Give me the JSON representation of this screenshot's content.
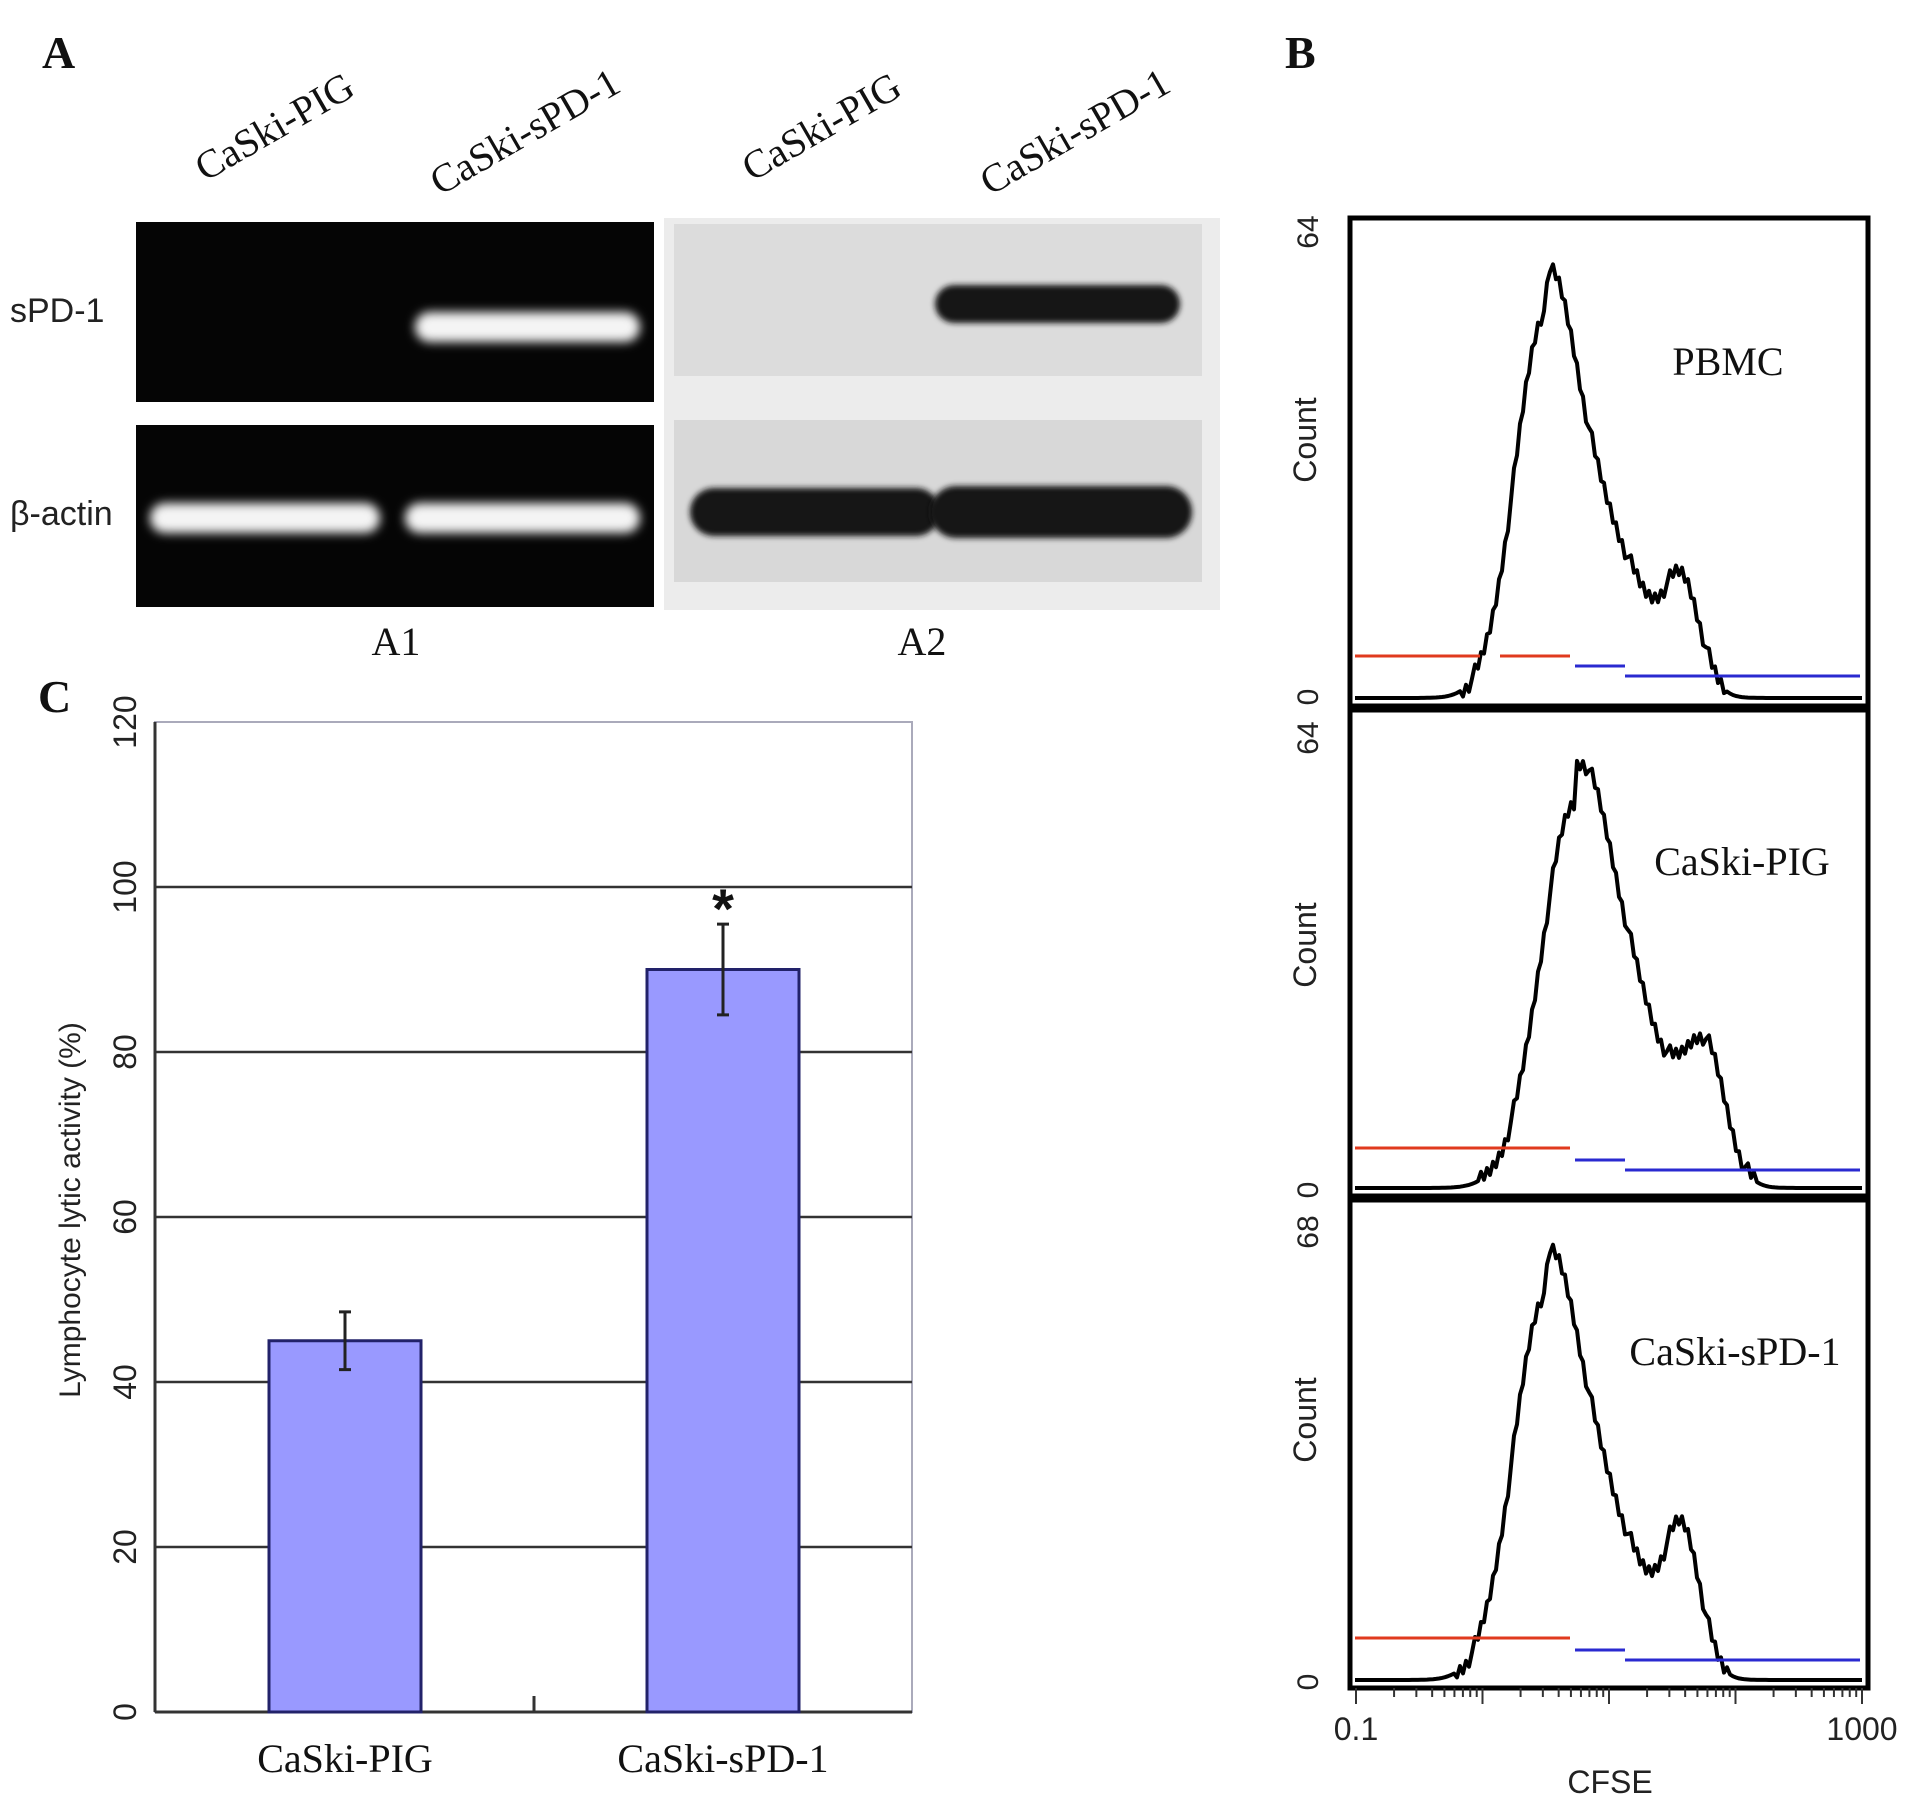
{
  "panels": {
    "A": {
      "letter": "A",
      "lanes": [
        "CaSki-PIG",
        "CaSki-sPD-1",
        "CaSki-PIG",
        "CaSki-sPD-1"
      ],
      "rows": [
        "sPD-1",
        "β-actin"
      ],
      "sub_labels": [
        "A1",
        "A2"
      ]
    },
    "B": {
      "letter": "B",
      "y_axis_label": "Count",
      "x_axis_label": "CFSE",
      "x_ticks": [
        "0.1",
        "1000"
      ],
      "histograms": [
        {
          "name": "PBMC",
          "y_min": "0",
          "y_max": "64",
          "peak1": 1.0,
          "peak2": 0.27
        },
        {
          "name": "CaSki-PIG",
          "y_min": "0",
          "y_max": "64",
          "peak1": 1.0,
          "peak2": 0.32
        },
        {
          "name": "CaSki-sPD-1",
          "y_min": "0",
          "y_max": "68",
          "peak1": 1.0,
          "peak2": 0.36
        }
      ]
    },
    "C": {
      "letter": "C",
      "significance_mark": "*"
    }
  },
  "chart_data": {
    "type": "bar",
    "categories": [
      "CaSki-PIG",
      "CaSki-sPD-1"
    ],
    "values": [
      45,
      90
    ],
    "errors": [
      3.5,
      5.5
    ],
    "ylabel": "Lymphocyte lytic activity (%)",
    "ylim": [
      0,
      120
    ],
    "yticks": [
      0,
      20,
      40,
      60,
      80,
      100,
      120
    ],
    "bar_color": "#9999ff",
    "grid": true
  }
}
